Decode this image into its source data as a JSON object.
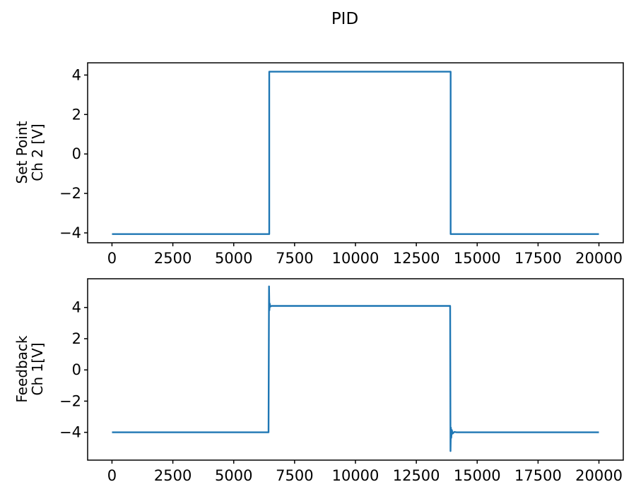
{
  "title": "PID",
  "figure": {
    "background": "#ffffff",
    "frame_color": "#000000",
    "accent_line_color": "#1f77b4"
  },
  "chart_data": [
    {
      "type": "line",
      "subplot": "top",
      "title": "",
      "xlabel": "",
      "ylabel": "Set Point\nCh 2 [V]",
      "xlim": [
        -1000,
        21000
      ],
      "ylim": [
        -4.5,
        4.62
      ],
      "xticks": [
        0,
        2500,
        5000,
        7500,
        10000,
        12500,
        15000,
        17500,
        20000
      ],
      "yticks": [
        4,
        2,
        0,
        -2,
        -4
      ],
      "grid": false,
      "legend": null,
      "series": [
        {
          "name": "set-point-ch2",
          "color": "#1f77b4",
          "points": [
            [
              0,
              -4.06
            ],
            [
              6460,
              -4.06
            ],
            [
              6460,
              4.17
            ],
            [
              13910,
              4.17
            ],
            [
              13910,
              -4.06
            ],
            [
              20000,
              -4.06
            ]
          ]
        }
      ]
    },
    {
      "type": "line",
      "subplot": "bottom",
      "title": "",
      "xlabel": "",
      "ylabel": "Feedback\nCh 1[V]",
      "xlim": [
        -1000,
        21000
      ],
      "ylim": [
        -5.78,
        5.84
      ],
      "xticks": [
        0,
        2500,
        5000,
        7500,
        10000,
        12500,
        15000,
        17500,
        20000
      ],
      "yticks": [
        4,
        2,
        0,
        -2,
        -4
      ],
      "grid": false,
      "legend": null,
      "series": [
        {
          "name": "feedback-ch1",
          "color": "#1f77b4",
          "points": [
            [
              0,
              -4.0
            ],
            [
              6430,
              -4.0
            ],
            [
              6450,
              5.35
            ],
            [
              6465,
              3.82
            ],
            [
              6480,
              4.25
            ],
            [
              6500,
              4.05
            ],
            [
              6550,
              4.1
            ],
            [
              13890,
              4.1
            ],
            [
              13905,
              -5.2
            ],
            [
              13920,
              -3.7
            ],
            [
              13935,
              -4.35
            ],
            [
              13955,
              -3.85
            ],
            [
              13990,
              -4.08
            ],
            [
              14060,
              -3.97
            ],
            [
              14150,
              -4.0
            ],
            [
              20000,
              -4.0
            ]
          ]
        }
      ]
    }
  ]
}
